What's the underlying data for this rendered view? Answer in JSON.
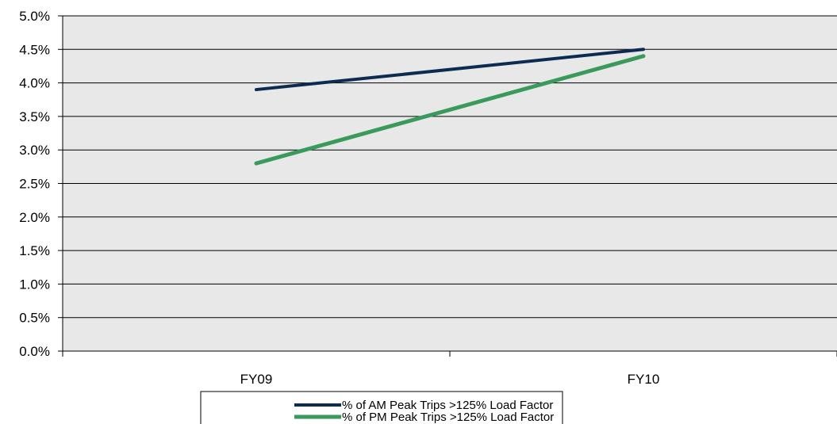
{
  "chart_data": {
    "type": "line",
    "categories": [
      "FY09",
      "FY10"
    ],
    "series": [
      {
        "name": "% of AM Peak Trips >125% Load Factor",
        "values": [
          3.9,
          4.5
        ],
        "color": "#0d2b52"
      },
      {
        "name": "% of PM Peak Trips >125% Load Factor",
        "values": [
          2.8,
          4.4
        ],
        "color": "#3a9a5c"
      }
    ],
    "ylim": [
      0,
      5
    ],
    "yticks": [
      "0.0%",
      "0.5%",
      "1.0%",
      "1.5%",
      "2.0%",
      "2.5%",
      "3.0%",
      "3.5%",
      "4.0%",
      "4.5%",
      "5.0%"
    ],
    "ytick_values": [
      0,
      0.5,
      1,
      1.5,
      2,
      2.5,
      3,
      3.5,
      4,
      4.5,
      5
    ],
    "grid": true,
    "legend_position": "bottom",
    "plot_background": "#e8e8e8"
  }
}
